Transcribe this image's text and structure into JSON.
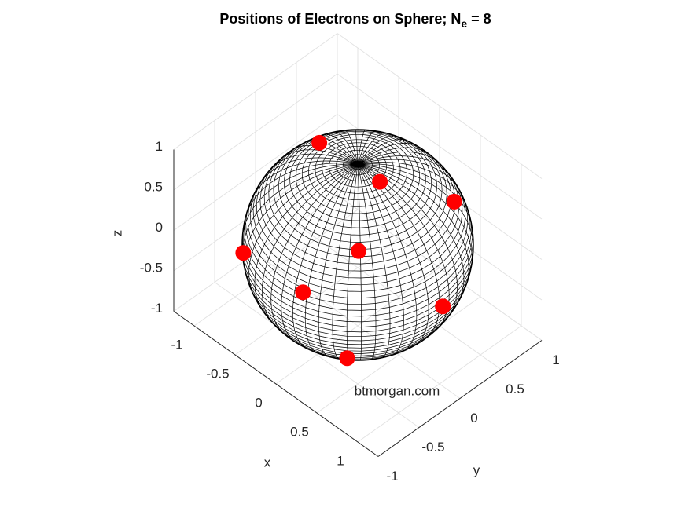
{
  "chart_data": {
    "type": "scatter3d",
    "title": {
      "text": "Positions of Electrons on Sphere; N",
      "subscript": "e",
      "after": " = 8"
    },
    "x_label": "x",
    "y_label": "y",
    "z_label": "z",
    "annotation": "btmorgan.com",
    "xlim": [
      -1.25,
      1.25
    ],
    "ylim": [
      -1,
      1
    ],
    "zlim": [
      -1,
      1
    ],
    "xticks": [
      -1,
      -0.5,
      0,
      0.5,
      1
    ],
    "yticks": [
      -1,
      -0.5,
      0,
      0.5,
      1
    ],
    "zticks": [
      -1,
      -0.5,
      0,
      0.5,
      1
    ],
    "grid": true,
    "series": [
      {
        "color": "#ff0000",
        "x": [
          -0.53,
          0.26,
          0.6,
          -0.59,
          0.53,
          0.26,
          1.0,
          0.52
        ],
        "y": [
          0.06,
          0.01,
          0.58,
          -0.81,
          -0.52,
          -0.93,
          0.04,
          -0.65
        ],
        "z": [
          0.84,
          0.96,
          0.55,
          0.06,
          0.68,
          0.27,
          -0.07,
          -0.56
        ]
      }
    ]
  }
}
